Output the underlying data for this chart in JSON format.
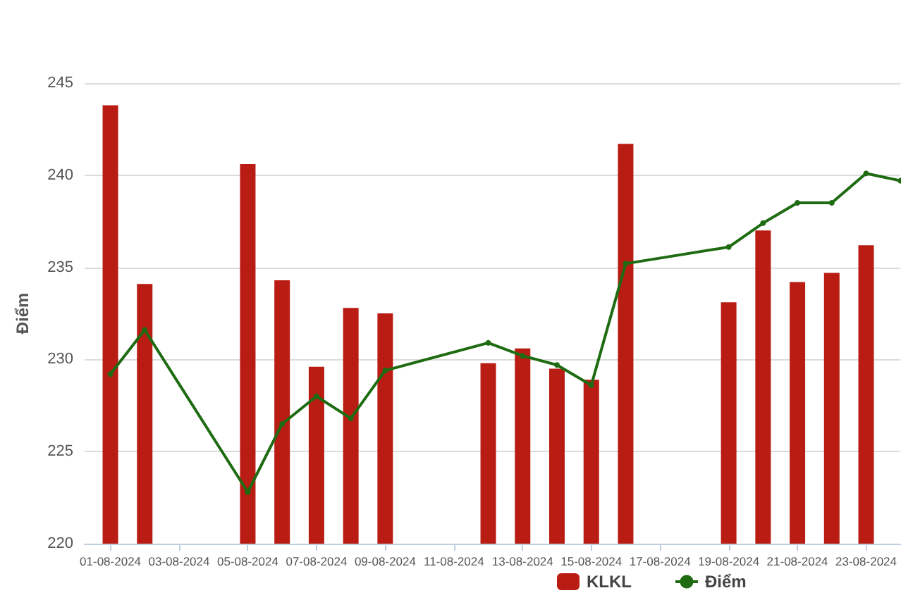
{
  "chart_data": {
    "type": "bar",
    "ylabel": "Điểm",
    "xlim": [
      "2024-07-31T06:00",
      "2024-08-24T00:00"
    ],
    "ylim": [
      220,
      245
    ],
    "yticks": [
      220,
      225,
      230,
      235,
      240,
      245
    ],
    "xticks": [
      {
        "value": "2024-08-01",
        "label": "01-08-2024"
      },
      {
        "value": "2024-08-03",
        "label": "03-08-2024"
      },
      {
        "value": "2024-08-05",
        "label": "05-08-2024"
      },
      {
        "value": "2024-08-07",
        "label": "07-08-2024"
      },
      {
        "value": "2024-08-09",
        "label": "09-08-2024"
      },
      {
        "value": "2024-08-11",
        "label": "11-08-2024"
      },
      {
        "value": "2024-08-13",
        "label": "13-08-2024"
      },
      {
        "value": "2024-08-15",
        "label": "15-08-2024"
      },
      {
        "value": "2024-08-17",
        "label": "17-08-2024"
      },
      {
        "value": "2024-08-19",
        "label": "19-08-2024"
      },
      {
        "value": "2024-08-21",
        "label": "21-08-2024"
      },
      {
        "value": "2024-08-23",
        "label": "23-08-2024"
      }
    ],
    "series": [
      {
        "name": "KLKL",
        "color": "#b81c12",
        "x": [
          "2024-08-01",
          "2024-08-02",
          "2024-08-05",
          "2024-08-06",
          "2024-08-07",
          "2024-08-08",
          "2024-08-09",
          "2024-08-12",
          "2024-08-13",
          "2024-08-14",
          "2024-08-15",
          "2024-08-16",
          "2024-08-19",
          "2024-08-20",
          "2024-08-21",
          "2024-08-22",
          "2024-08-23"
        ],
        "values": [
          243.8,
          234.1,
          240.6,
          234.3,
          229.6,
          232.8,
          232.5,
          229.8,
          230.6,
          229.5,
          228.9,
          241.7,
          233.1,
          237.0,
          234.2,
          234.7,
          236.2
        ]
      },
      {
        "name": "Điểm",
        "type": "line",
        "color": "#1e6b12",
        "marker": "circle",
        "line_style": "solid",
        "x": [
          "2024-08-01",
          "2024-08-02",
          "2024-08-05",
          "2024-08-06",
          "2024-08-07",
          "2024-08-08",
          "2024-08-09",
          "2024-08-12",
          "2024-08-13",
          "2024-08-14",
          "2024-08-15",
          "2024-08-16",
          "2024-08-19",
          "2024-08-20",
          "2024-08-21",
          "2024-08-22",
          "2024-08-23",
          "2024-08-24"
        ],
        "values": [
          229.2,
          231.6,
          222.8,
          226.5,
          228.0,
          226.8,
          229.4,
          230.9,
          230.2,
          229.7,
          228.6,
          235.2,
          236.1,
          237.4,
          238.5,
          238.5,
          240.1,
          239.7
        ]
      }
    ],
    "grid": "y",
    "legend": "bottom"
  }
}
